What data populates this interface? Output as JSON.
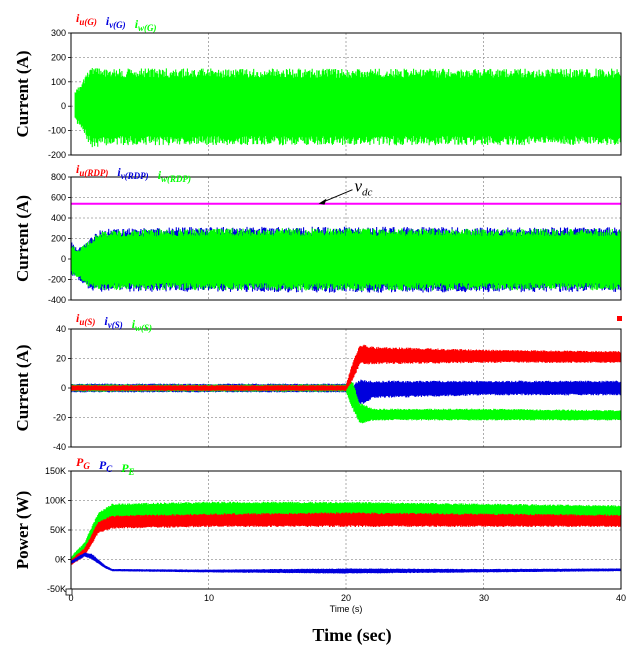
{
  "colors": {
    "red": "#ff0000",
    "blue": "#0000dd",
    "green": "#00ff00",
    "magenta": "#ff00ff"
  },
  "x_axis": {
    "label": "Time (sec)",
    "small_label": "Time (s)",
    "ticks": [
      "0",
      "10",
      "20",
      "30",
      "40"
    ]
  },
  "chart_data": [
    {
      "type": "line",
      "ylabel": "Current (A)",
      "xlim": [
        0,
        40
      ],
      "ylim": [
        -200,
        300
      ],
      "yticks": [
        "300",
        "200",
        "100",
        "0",
        "-100",
        "-200"
      ],
      "grid": true,
      "legend": [
        {
          "main": "i",
          "sub": "u(G)",
          "color": "#ff0000"
        },
        {
          "main": "i",
          "sub": "v(G)",
          "color": "#0000dd"
        },
        {
          "main": "i",
          "sub": "w(G)",
          "color": "#00ff00"
        }
      ],
      "series": [
        {
          "kind": "envelope",
          "color": "#00ff00",
          "x": [
            0.3,
            0.8,
            1.5,
            2,
            3,
            10,
            20,
            30,
            40
          ],
          "upper": [
            60,
            100,
            170,
            160,
            155,
            155,
            154,
            154,
            154
          ],
          "lower": [
            -60,
            -100,
            -175,
            -165,
            -160,
            -160,
            -160,
            -160,
            -160
          ]
        }
      ]
    },
    {
      "type": "line",
      "ylabel": "Current (A)",
      "xlim": [
        0,
        40
      ],
      "ylim": [
        -400,
        800
      ],
      "yticks": [
        "800",
        "600",
        "400",
        "200",
        "0",
        "-200",
        "-400"
      ],
      "grid": true,
      "legend": [
        {
          "main": "i",
          "sub": "u(RDP)",
          "color": "#ff0000"
        },
        {
          "main": "i",
          "sub": "v(RDP)",
          "color": "#0000dd"
        },
        {
          "main": "i",
          "sub": "w(RDP)",
          "color": "#00ff00"
        }
      ],
      "annotation": {
        "main": "v",
        "sub": "dc",
        "x": 18,
        "y": 540
      },
      "series": [
        {
          "kind": "envelope",
          "color": "#0000dd",
          "x": [
            0,
            0.5,
            1.5,
            2,
            3,
            10,
            20,
            30,
            40
          ],
          "upper": [
            170,
            100,
            220,
            280,
            300,
            315,
            315,
            310,
            310
          ],
          "lower": [
            -170,
            -200,
            -320,
            -320,
            -320,
            -320,
            -330,
            -325,
            -320
          ]
        },
        {
          "kind": "envelope",
          "color": "#00ff00",
          "x": [
            0,
            0.5,
            1.5,
            2,
            3,
            10,
            20,
            30,
            40
          ],
          "upper": [
            150,
            90,
            200,
            265,
            285,
            300,
            300,
            295,
            295
          ],
          "lower": [
            -150,
            -180,
            -300,
            -300,
            -305,
            -305,
            -310,
            -305,
            -305
          ]
        },
        {
          "kind": "line",
          "color": "#ff00ff",
          "x": [
            0,
            40
          ],
          "y": [
            540,
            540
          ]
        }
      ]
    },
    {
      "type": "line",
      "ylabel": "Current (A)",
      "xlim": [
        0,
        40
      ],
      "ylim": [
        -40,
        40
      ],
      "yticks": [
        "40",
        "20",
        "0",
        "-20",
        "-40"
      ],
      "grid": true,
      "legend": [
        {
          "main": "i",
          "sub": "u(S)",
          "color": "#ff0000"
        },
        {
          "main": "i",
          "sub": "v(S)",
          "color": "#0000dd"
        },
        {
          "main": "i",
          "sub": "w(S)",
          "color": "#00ff00"
        }
      ],
      "series": [
        {
          "kind": "envelope",
          "color": "#0000dd",
          "x": [
            0,
            20,
            20.5,
            21,
            22,
            30,
            40
          ],
          "upper": [
            3,
            3,
            2,
            6,
            5,
            5,
            5
          ],
          "lower": [
            -3,
            -3,
            -8,
            -12,
            -7,
            -5,
            -5
          ]
        },
        {
          "kind": "envelope",
          "color": "#00ff00",
          "x": [
            0,
            20,
            20.5,
            21,
            22,
            30,
            40
          ],
          "upper": [
            2.5,
            2.5,
            5,
            -10,
            -14,
            -14,
            -15
          ],
          "lower": [
            -2.5,
            -2.5,
            -15,
            -25,
            -22,
            -22,
            -22
          ]
        },
        {
          "kind": "envelope",
          "color": "#ff0000",
          "x": [
            0,
            20,
            20.5,
            21,
            22,
            30,
            40
          ],
          "upper": [
            2,
            2,
            18,
            30,
            28,
            26,
            25
          ],
          "lower": [
            -2,
            -2,
            5,
            16,
            16,
            17,
            17
          ]
        }
      ]
    },
    {
      "type": "line",
      "ylabel": "Power (W)",
      "xlim": [
        0,
        40
      ],
      "ylim": [
        -50,
        150
      ],
      "yticks": [
        "150K",
        "100K",
        "50K",
        "0K",
        "-50K"
      ],
      "grid": true,
      "legend": [
        {
          "main": "P",
          "sub": "G",
          "color": "#ff0000"
        },
        {
          "main": "P",
          "sub": "C",
          "color": "#0000dd"
        },
        {
          "main": "P",
          "sub": "E",
          "color": "#00ff00"
        }
      ],
      "series": [
        {
          "kind": "envelope",
          "color": "#00ff00",
          "x": [
            0,
            1,
            2,
            3,
            10,
            20,
            30,
            40
          ],
          "upper": [
            5,
            30,
            80,
            95,
            98,
            98,
            95,
            92
          ],
          "lower": [
            -5,
            10,
            60,
            70,
            72,
            72,
            70,
            70
          ]
        },
        {
          "kind": "envelope",
          "color": "#ff0000",
          "x": [
            0,
            1,
            2,
            3,
            10,
            20,
            30,
            40
          ],
          "upper": [
            0,
            20,
            65,
            75,
            78,
            80,
            78,
            76
          ],
          "lower": [
            -10,
            5,
            45,
            52,
            55,
            55,
            55,
            55
          ]
        },
        {
          "kind": "envelope",
          "color": "#0000dd",
          "x": [
            0,
            1,
            1.5,
            2.5,
            3,
            10,
            20,
            30,
            40
          ],
          "upper": [
            -2,
            12,
            10,
            -10,
            -16,
            -17,
            -15,
            -16,
            -15
          ],
          "lower": [
            -8,
            5,
            0,
            -15,
            -20,
            -22,
            -24,
            -22,
            -20
          ]
        }
      ]
    }
  ]
}
